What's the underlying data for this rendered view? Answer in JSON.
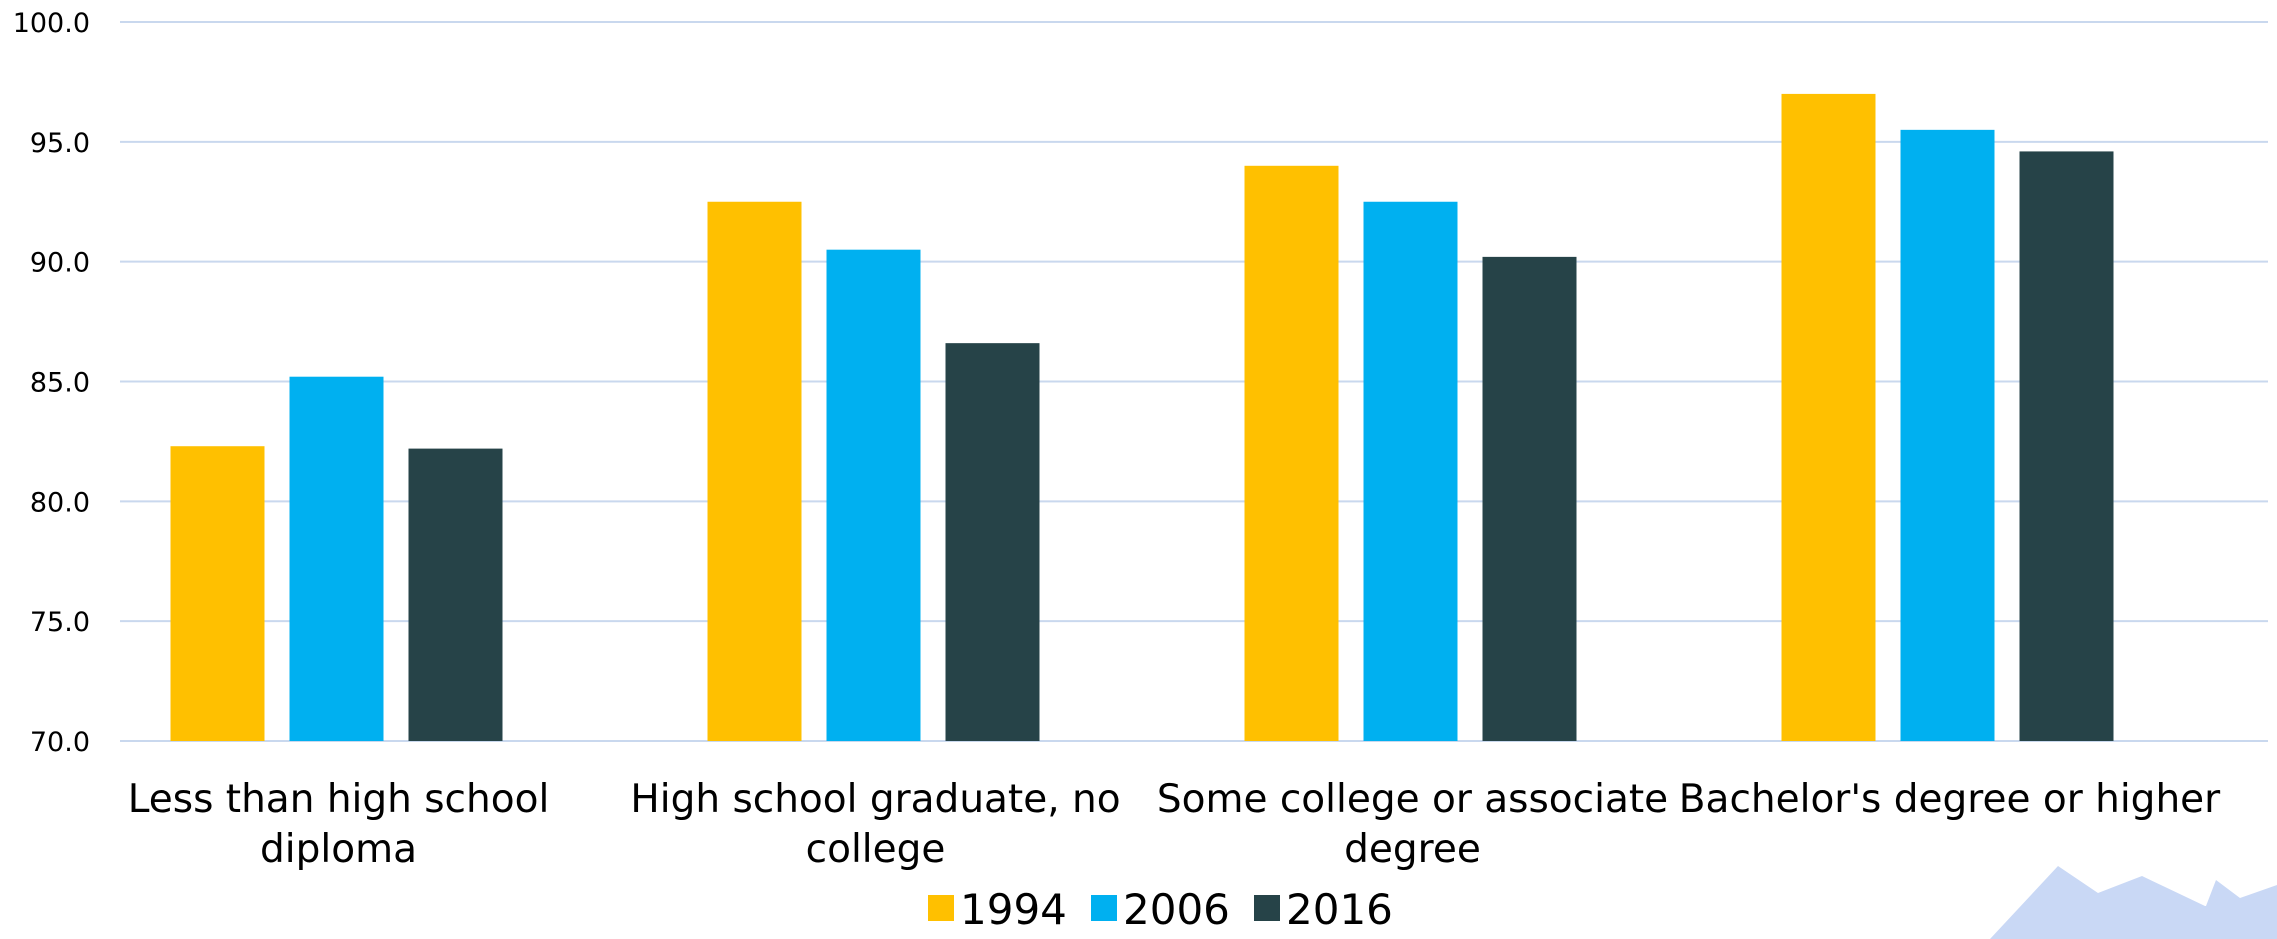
{
  "chart_data": {
    "type": "bar",
    "categories": [
      [
        "Less than high school",
        "diploma"
      ],
      [
        "High school graduate, no",
        "college"
      ],
      [
        "Some college or associate",
        "degree"
      ],
      [
        "Bachelor's degree or higher"
      ]
    ],
    "series": [
      {
        "name": "1994",
        "color": "#FFC000",
        "values": [
          82.3,
          92.5,
          94.0,
          97.0
        ]
      },
      {
        "name": "2006",
        "color": "#00B0F0",
        "values": [
          85.2,
          90.5,
          92.5,
          95.5
        ]
      },
      {
        "name": "2016",
        "color": "#264348",
        "values": [
          82.2,
          86.6,
          90.2,
          94.6
        ]
      }
    ],
    "ylim": [
      70.0,
      100.0
    ],
    "yticks": [
      "70.0",
      "75.0",
      "80.0",
      "85.0",
      "90.0",
      "95.0",
      "100.0"
    ],
    "grid": true,
    "gridline_color": "#C9D8EE",
    "legend_position": "bottom",
    "title": "",
    "xlabel": "",
    "ylabel": ""
  },
  "watermark": {
    "color": "#C9D8F5"
  }
}
